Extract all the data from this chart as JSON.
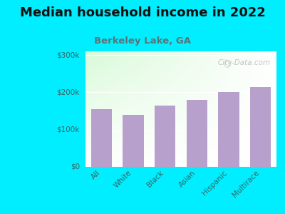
{
  "title": "Median household income in 2022",
  "subtitle": "Berkeley Lake, GA",
  "categories": [
    "All",
    "White",
    "Black",
    "Asian",
    "Hispanic",
    "Multirace"
  ],
  "values": [
    155000,
    140000,
    165000,
    180000,
    200000,
    215000
  ],
  "bar_color": "#b8a0cc",
  "background_outer": "#00eeff",
  "yticks": [
    0,
    100000,
    200000,
    300000
  ],
  "ytick_labels": [
    "$0",
    "$100k",
    "$200k",
    "$300k"
  ],
  "ylim": [
    0,
    310000
  ],
  "title_fontsize": 13,
  "subtitle_fontsize": 9.5,
  "tick_label_fontsize": 7.5,
  "watermark": "City-Data.com"
}
